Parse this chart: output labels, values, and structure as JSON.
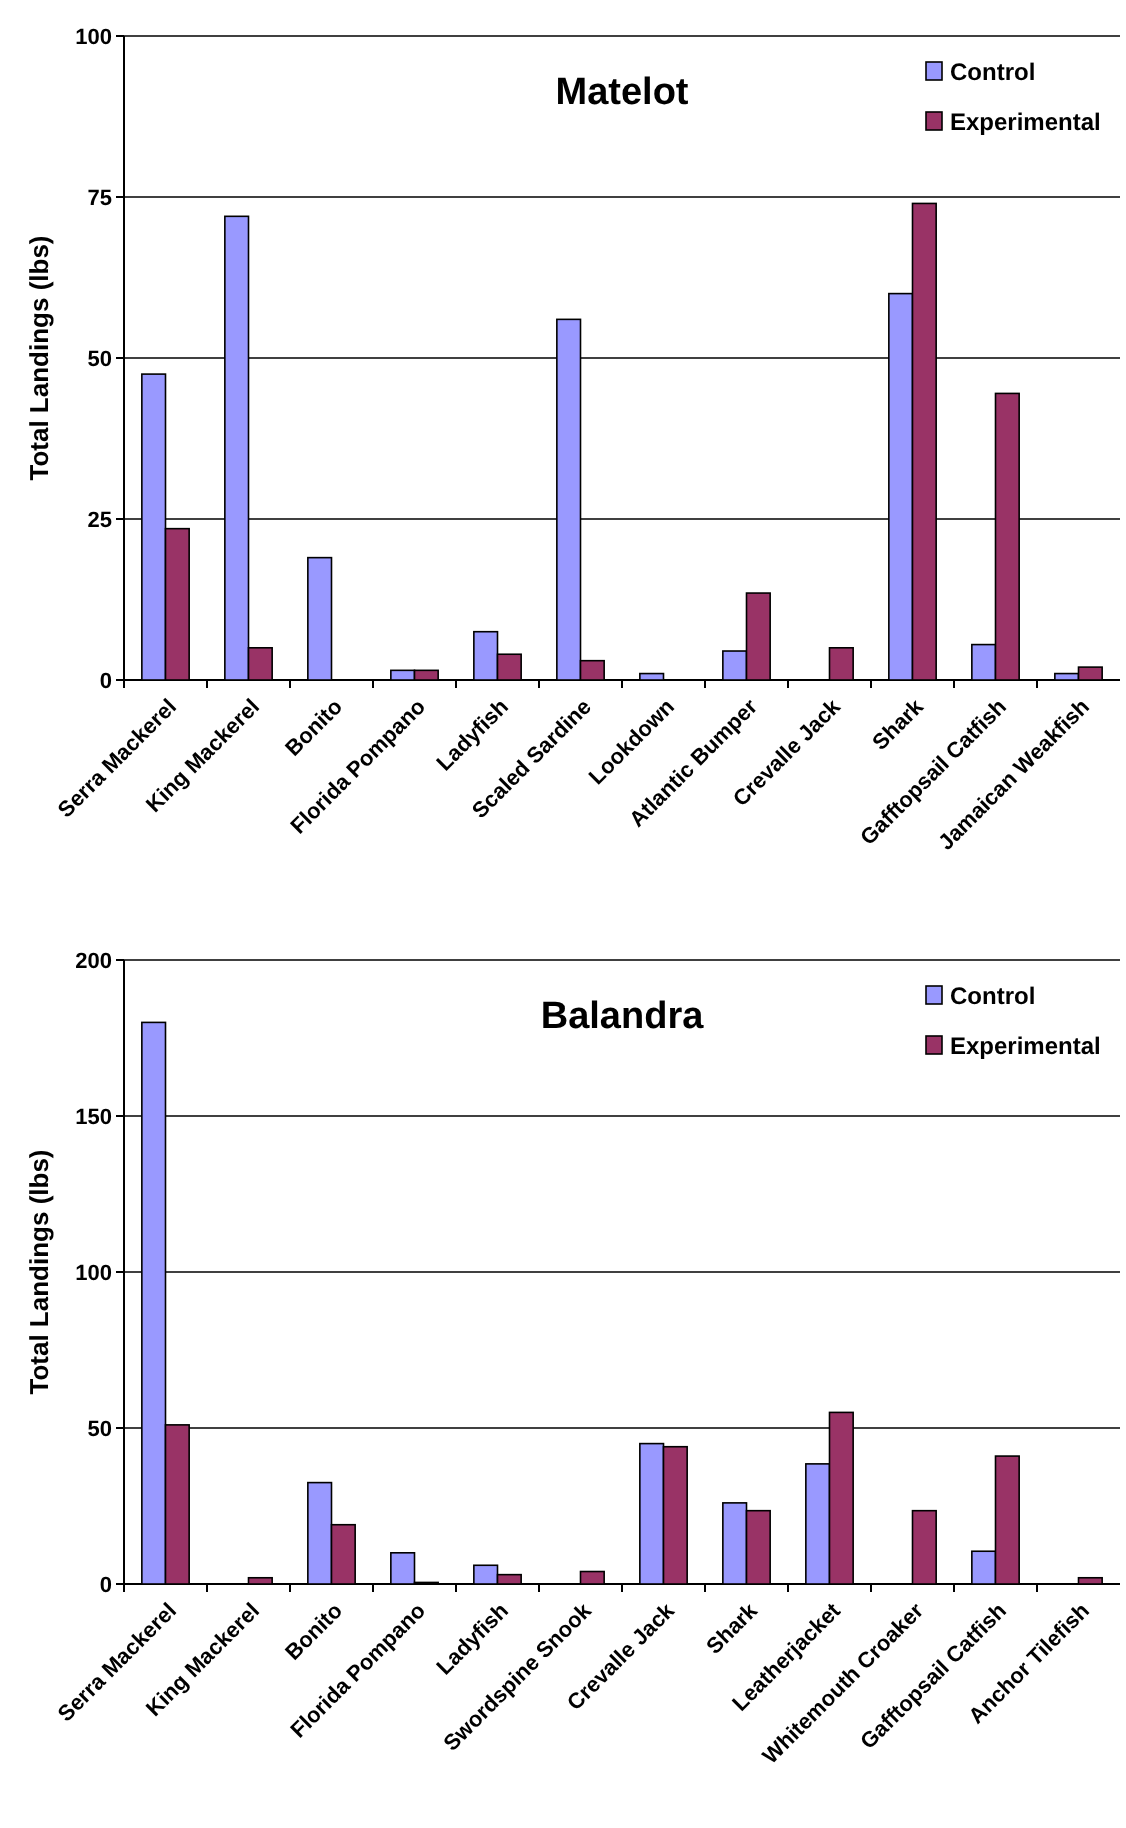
{
  "chart_data": [
    {
      "type": "bar",
      "title": "Matelot",
      "ylabel": "Total Landings (lbs)",
      "categories": [
        "Serra Mackerel",
        "King Mackerel",
        "Bonito",
        "Florida Pompano",
        "Ladyfish",
        "Scaled Sardine",
        "Lookdown",
        "Atlantic Bumper",
        "Crevalle Jack",
        "Shark",
        "Gafftopsail Catfish",
        "Jamaican Weakfish"
      ],
      "series": [
        {
          "name": "Control",
          "color": "#9999ff",
          "values": [
            47.5,
            72,
            19,
            1.5,
            7.5,
            56,
            1,
            4.5,
            0,
            60,
            5.5,
            1
          ]
        },
        {
          "name": "Experimental",
          "color": "#993366",
          "values": [
            23.5,
            5,
            0,
            1.5,
            4,
            3,
            0,
            13.5,
            5,
            74,
            44.5,
            2
          ]
        }
      ],
      "ylim": [
        0,
        100
      ],
      "yticks": [
        0,
        25,
        50,
        75,
        100
      ],
      "grid": "y",
      "legend": "top right"
    },
    {
      "type": "bar",
      "title": "Balandra",
      "ylabel": "Total Landings (lbs)",
      "categories": [
        "Serra Mackerel",
        "King Mackerel",
        "Bonito",
        "Florida Pompano",
        "Ladyfish",
        "Swordspine Snook",
        "Crevalle Jack",
        "Shark",
        "Leatherjacket",
        "Whitemouth Croaker",
        "Gafftopsail Catfish",
        "Anchor Tilefish"
      ],
      "series": [
        {
          "name": "Control",
          "color": "#9999ff",
          "values": [
            180,
            0,
            32.5,
            10,
            6,
            0,
            45,
            26,
            38.5,
            0,
            10.5,
            0
          ]
        },
        {
          "name": "Experimental",
          "color": "#993366",
          "values": [
            51,
            2,
            19,
            0.5,
            3,
            4,
            44,
            23.5,
            55,
            23.5,
            41,
            2
          ]
        }
      ],
      "ylim": [
        0,
        200
      ],
      "yticks": [
        0,
        50,
        100,
        150,
        200
      ],
      "grid": "y",
      "legend": "top right"
    }
  ]
}
